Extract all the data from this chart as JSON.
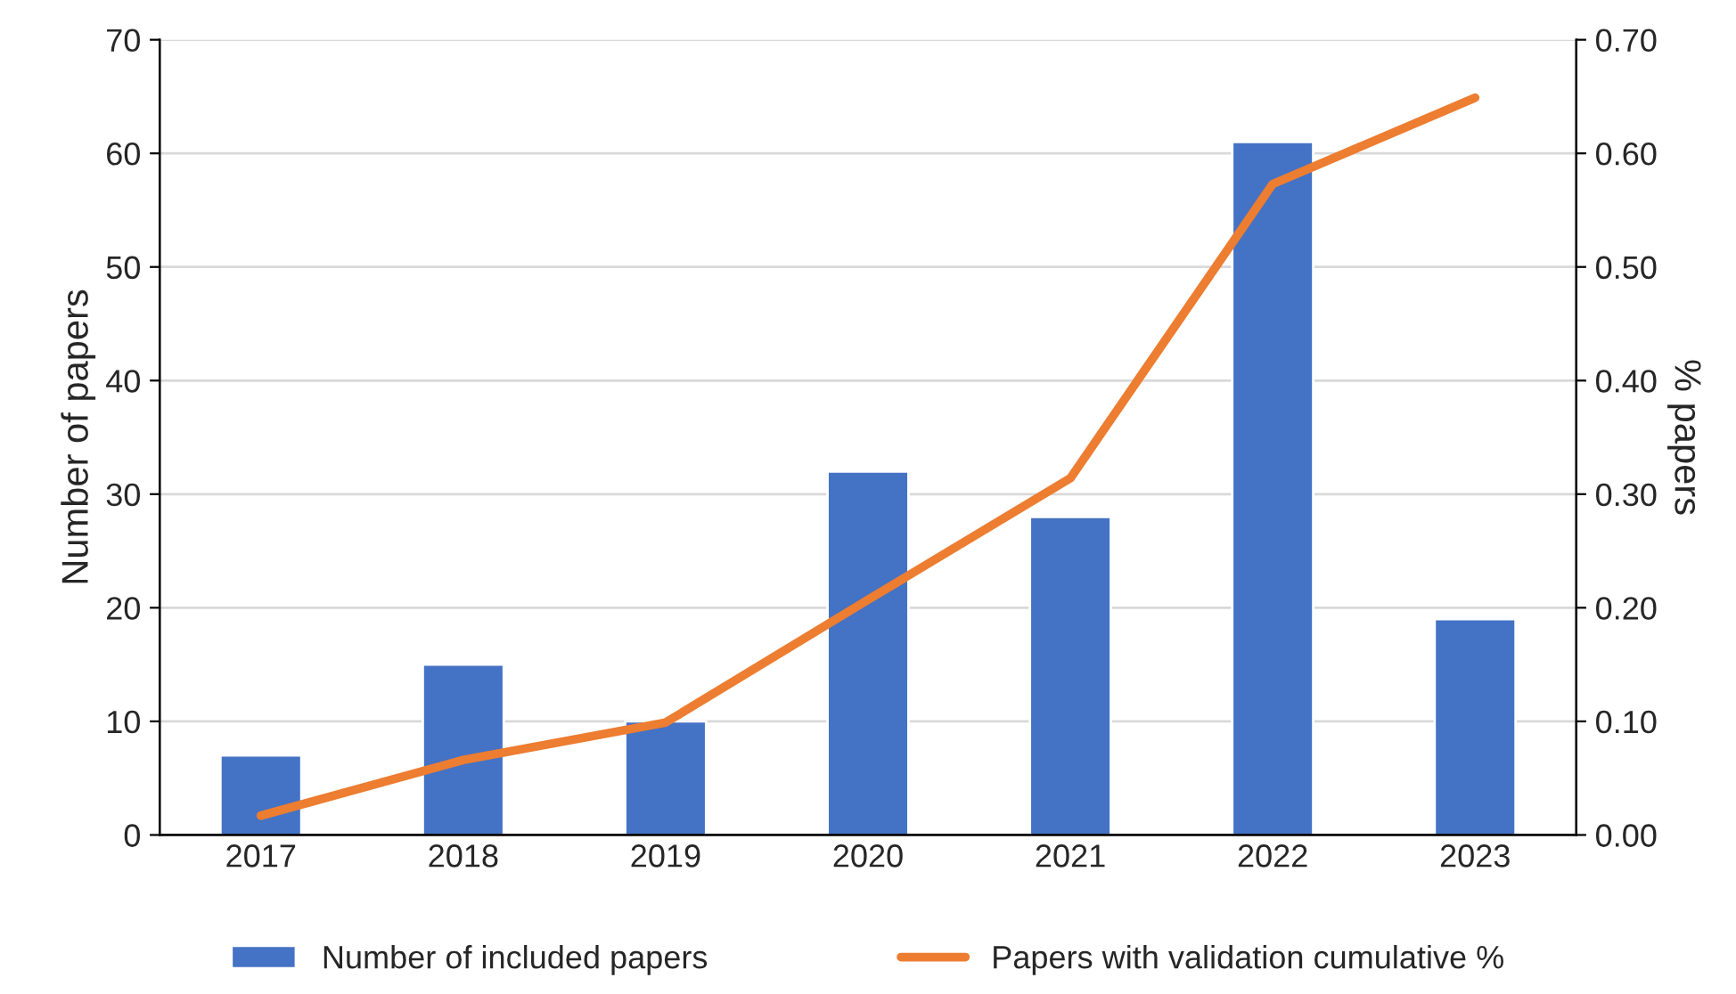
{
  "chart_data": {
    "type": "bar",
    "ylabel": "Number of papers",
    "y2label": "% papers",
    "categories": [
      "2017",
      "2018",
      "2019",
      "2020",
      "2021",
      "2022",
      "2023"
    ],
    "series": [
      {
        "name": "Number of included papers",
        "color": "#4472c4",
        "values": [
          7,
          15,
          10,
          32,
          28,
          61,
          19
        ]
      },
      {
        "name": "Papers with validation cumulative %",
        "type": "line",
        "axis": "y2",
        "color": "#ed7d31",
        "values": [
          0.017,
          0.066,
          0.099,
          0.207,
          0.314,
          0.573,
          0.649
        ]
      }
    ],
    "ylim": [
      0,
      70
    ],
    "yticks": [
      0,
      10,
      20,
      30,
      40,
      50,
      60,
      70
    ],
    "y2lim": [
      0,
      0.7
    ],
    "y2ticks": [
      {
        "value": 0,
        "label": "0.00"
      },
      {
        "value": 0.1,
        "label": "0.10"
      },
      {
        "value": 0.2,
        "label": "0.20"
      },
      {
        "value": 0.3,
        "label": "0.30"
      },
      {
        "value": 0.4,
        "label": "0.40"
      },
      {
        "value": 0.5,
        "label": "0.50"
      },
      {
        "value": 0.6,
        "label": "0.60"
      },
      {
        "value": 0.7,
        "label": "0.70"
      }
    ],
    "grid": "y",
    "legend": "bottom",
    "marker": "none",
    "line_style": "solid"
  }
}
